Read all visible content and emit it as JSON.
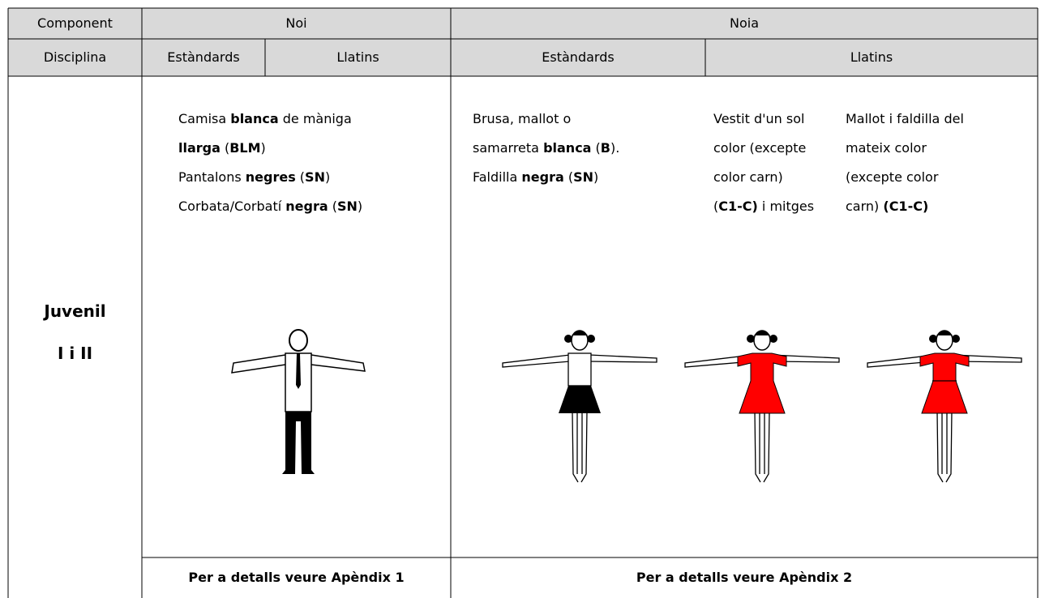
{
  "table": {
    "header": {
      "row1": [
        "Component",
        "Noi",
        "Noia"
      ],
      "row2": [
        "Disciplina",
        "Estàndards",
        "Llatins",
        "Estàndards",
        "Llatins"
      ]
    },
    "category": [
      "Juvenil",
      "I i II"
    ],
    "blocks": [
      [
        [
          {
            "text": "Camisa "
          },
          {
            "text": "blanca",
            "bold": true
          },
          {
            "text": " de màniga"
          }
        ],
        [
          {
            "text": "llarga",
            "bold": true
          },
          {
            "text": " ("
          },
          {
            "text": "BLM",
            "bold": true
          },
          {
            "text": ")"
          }
        ],
        [
          {
            "text": "Pantalons "
          },
          {
            "text": "negres",
            "bold": true
          },
          {
            "text": " ("
          },
          {
            "text": "SN",
            "bold": true
          },
          {
            "text": ")"
          }
        ],
        [
          {
            "text": "Corbata/Corbatí "
          },
          {
            "text": "negra",
            "bold": true
          },
          {
            "text": " ("
          },
          {
            "text": "SN",
            "bold": true
          },
          {
            "text": ")"
          }
        ]
      ],
      [
        [
          {
            "text": "Brusa, mallot o"
          }
        ],
        [
          {
            "text": "samarreta "
          },
          {
            "text": "blanca",
            "bold": true
          },
          {
            "text": " ("
          },
          {
            "text": "B",
            "bold": true
          },
          {
            "text": ")."
          }
        ],
        [
          {
            "text": "Faldilla "
          },
          {
            "text": "negra",
            "bold": true
          },
          {
            "text": " ("
          },
          {
            "text": "SN",
            "bold": true
          },
          {
            "text": ")"
          }
        ]
      ],
      [
        [
          {
            "text": "Vestit d'un sol"
          }
        ],
        [
          {
            "text": "color (excepte"
          }
        ],
        [
          {
            "text": "color carn)"
          }
        ],
        [
          {
            "text": "("
          },
          {
            "text": "C1-C)",
            "bold": true
          },
          {
            "text": " i mitges"
          }
        ]
      ],
      [
        [
          {
            "text": "Mallot i faldilla del"
          }
        ],
        [
          {
            "text": "mateix color"
          }
        ],
        [
          {
            "text": "(excepte color"
          }
        ],
        [
          {
            "text": "carn) "
          },
          {
            "text": "(C1-C)",
            "bold": true
          }
        ]
      ]
    ],
    "footer": [
      "Per a detalls veure Apèndix 1",
      "Per a detalls veure Apèndix 2"
    ]
  }
}
